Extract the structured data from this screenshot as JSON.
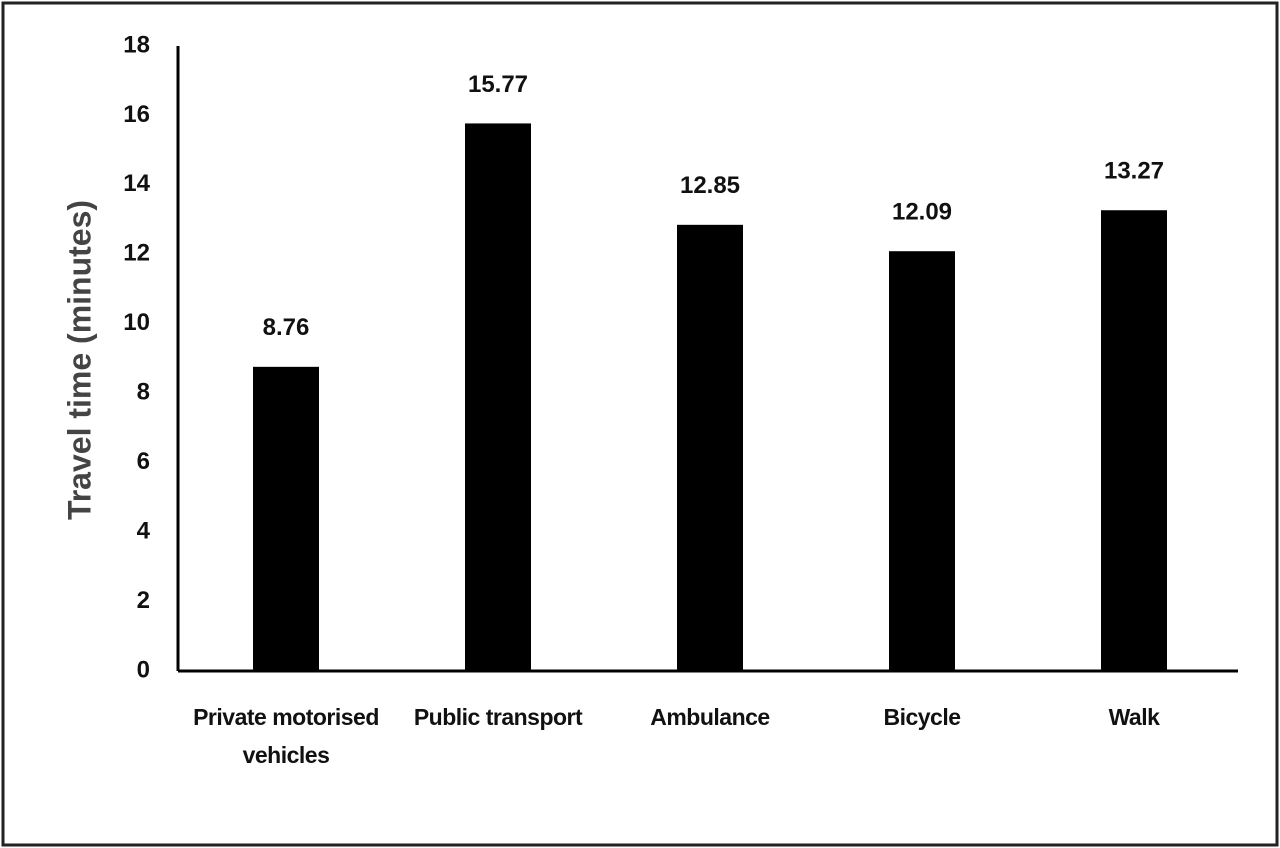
{
  "chart_data": {
    "type": "bar",
    "y_label": "Travel time (minutes)",
    "categories": [
      "Private motorised vehicles",
      "Public transport",
      "Ambulance",
      "Bicycle",
      "Walk"
    ],
    "values": [
      8.76,
      15.77,
      12.85,
      12.09,
      13.27
    ],
    "color": "#000000",
    "ylim": [
      0,
      18
    ],
    "yticks": [
      0,
      2,
      4,
      6,
      8,
      10,
      12,
      14,
      16,
      18
    ],
    "grid": false
  }
}
